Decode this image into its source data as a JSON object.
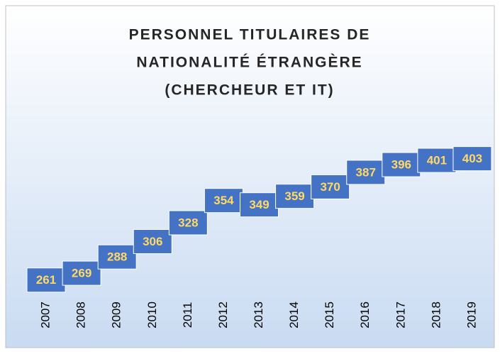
{
  "chart_data": {
    "type": "line",
    "title": [
      "PERSONNEL TITULAIRES  DE",
      "NATIONALITÉ ÉTRANGÈRE",
      "(CHERCHEUR ET IT)"
    ],
    "categories": [
      "2007",
      "2008",
      "2009",
      "2010",
      "2011",
      "2012",
      "2013",
      "2014",
      "2015",
      "2016",
      "2017",
      "2018",
      "2019"
    ],
    "values": [
      261,
      269,
      288,
      306,
      328,
      354,
      349,
      359,
      370,
      387,
      396,
      401,
      403
    ],
    "color": "#4472c4",
    "ylim": [
      250,
      450
    ]
  }
}
